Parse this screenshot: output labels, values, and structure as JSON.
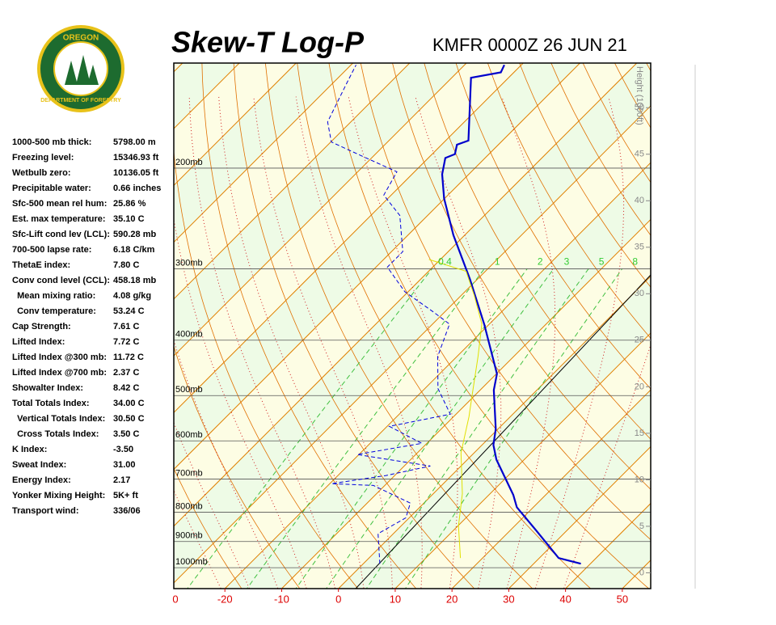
{
  "logo": {
    "top": "OREGON",
    "bottom": "DEPARTMENT OF FORESTRY"
  },
  "header": {
    "title": "Skew-T Log-P",
    "station": "KMFR 0000Z 26 JUN 21"
  },
  "indices": [
    {
      "label": "1000-500 mb thick:",
      "value": "5798.00 m"
    },
    {
      "label": "Freezing level:",
      "value": "15346.93 ft"
    },
    {
      "label": "Wetbulb zero:",
      "value": "10136.05 ft"
    },
    {
      "label": "Precipitable water:",
      "value": "0.66 inches"
    },
    {
      "label": "Sfc-500 mean rel hum:",
      "value": "25.86 %"
    },
    {
      "label": "Est. max temperature:",
      "value": "35.10 C"
    },
    {
      "label": "Sfc-Lift cond lev (LCL):",
      "value": "590.28 mb"
    },
    {
      "label": "700-500 lapse rate:",
      "value": "6.18 C/km"
    },
    {
      "label": "ThetaE index:",
      "value": "7.80 C"
    },
    {
      "label": "Conv cond level (CCL):",
      "value": "458.18 mb"
    },
    {
      "label": "  Mean mixing ratio:",
      "value": "4.08 g/kg"
    },
    {
      "label": "  Conv temperature:",
      "value": "53.24 C"
    },
    {
      "label": "Cap Strength:",
      "value": "7.61 C"
    },
    {
      "label": "Lifted Index:",
      "value": "7.72 C"
    },
    {
      "label": "Lifted Index @300 mb:",
      "value": "11.72 C"
    },
    {
      "label": "Lifted Index @700 mb:",
      "value": "2.37 C"
    },
    {
      "label": "Showalter Index:",
      "value": "8.42 C"
    },
    {
      "label": "Total Totals Index:",
      "value": "34.00 C"
    },
    {
      "label": "  Vertical Totals Index:",
      "value": "30.50 C"
    },
    {
      "label": "  Cross Totals Index:",
      "value": "3.50 C"
    },
    {
      "label": "K Index:",
      "value": "-3.50"
    },
    {
      "label": "Sweat Index:",
      "value": "31.00"
    },
    {
      "label": "Energy Index:",
      "value": "2.17"
    },
    {
      "label": "Yonker Mixing Height:",
      "value": "5K+ ft"
    },
    {
      "label": "Transport wind:",
      "value": "336/06"
    }
  ],
  "chart_data": {
    "type": "skewt",
    "ylim": [
      1088,
      131
    ],
    "log_y": true,
    "yticks": [
      {
        "value": 200,
        "label": "200mb"
      },
      {
        "value": 300,
        "label": "300mb"
      },
      {
        "value": 400,
        "label": "400mb"
      },
      {
        "value": 500,
        "label": "500mb"
      },
      {
        "value": 600,
        "label": "600mb"
      },
      {
        "value": 700,
        "label": "700mb"
      },
      {
        "value": 800,
        "label": "800mb"
      },
      {
        "value": 900,
        "label": "900mb"
      },
      {
        "value": 1000,
        "label": "1000mb"
      }
    ],
    "xlim": [
      -29,
      55
    ],
    "xticks": [
      -20,
      -10,
      0,
      10,
      20,
      30,
      40,
      50
    ],
    "x_origin_label": "0",
    "y2_label": "Height (1000ft)",
    "y2lim": [
      -1.7,
      54.8
    ],
    "y2ticks": [
      0,
      5,
      10,
      15,
      20,
      25,
      30,
      35,
      40,
      45,
      50
    ],
    "mixing_ratio_labels": [
      0.4,
      1,
      2,
      3,
      5,
      8
    ],
    "series": [
      {
        "color": "#0000cc",
        "dashed": false,
        "width": 2.2,
        "pressure": [
          984,
          962,
          861,
          784,
          746,
          647,
          610,
          572,
          489,
          458,
          375,
          313,
          262,
          226,
          205,
          192,
          189,
          182,
          179,
          139,
          136,
          132
        ],
        "temperature": [
          38.3,
          33.4,
          24.6,
          17.1,
          14.3,
          5.1,
          2.0,
          -0.4,
          -7.6,
          -9.9,
          -20.9,
          -31.3,
          -42.0,
          -50.1,
          -54.7,
          -57.0,
          -56.0,
          -57.3,
          -56.0,
          -66.6,
          -62.3,
          -63.0
        ]
      },
      {
        "color": "#0000dd",
        "dashed": true,
        "width": 1,
        "pressure": [
          984,
          872,
          818,
          771,
          718,
          713,
          690,
          664,
          634,
          606,
          566,
          539,
          486,
          427,
          375,
          357,
          329,
          298,
          280,
          242,
          223,
          203,
          190,
          180,
          166,
          141,
          132
        ],
        "temperature": [
          2.9,
          -2.7,
          -0.6,
          -2.4,
          -12.0,
          -19.7,
          -11.6,
          -5.4,
          -20.3,
          -10.9,
          -19.6,
          -11.0,
          -17.7,
          -23.4,
          -27.0,
          -32.0,
          -40.6,
          -48.0,
          -48.0,
          -54.9,
          -61.3,
          -63.1,
          -72.4,
          -79.9,
          -84.1,
          -87.7,
          -89.1
        ]
      },
      {
        "color": "#e0e000",
        "dashed": false,
        "width": 1,
        "pressure": [
          962,
          845,
          742,
          630,
          544,
          502,
          427,
          375,
          334,
          303,
          289
        ],
        "temperature": [
          16.1,
          10.1,
          5.1,
          -2.3,
          -7.3,
          -10.3,
          -16.3,
          -21.3,
          -27.7,
          -33.4,
          -42.0
        ]
      }
    ]
  }
}
